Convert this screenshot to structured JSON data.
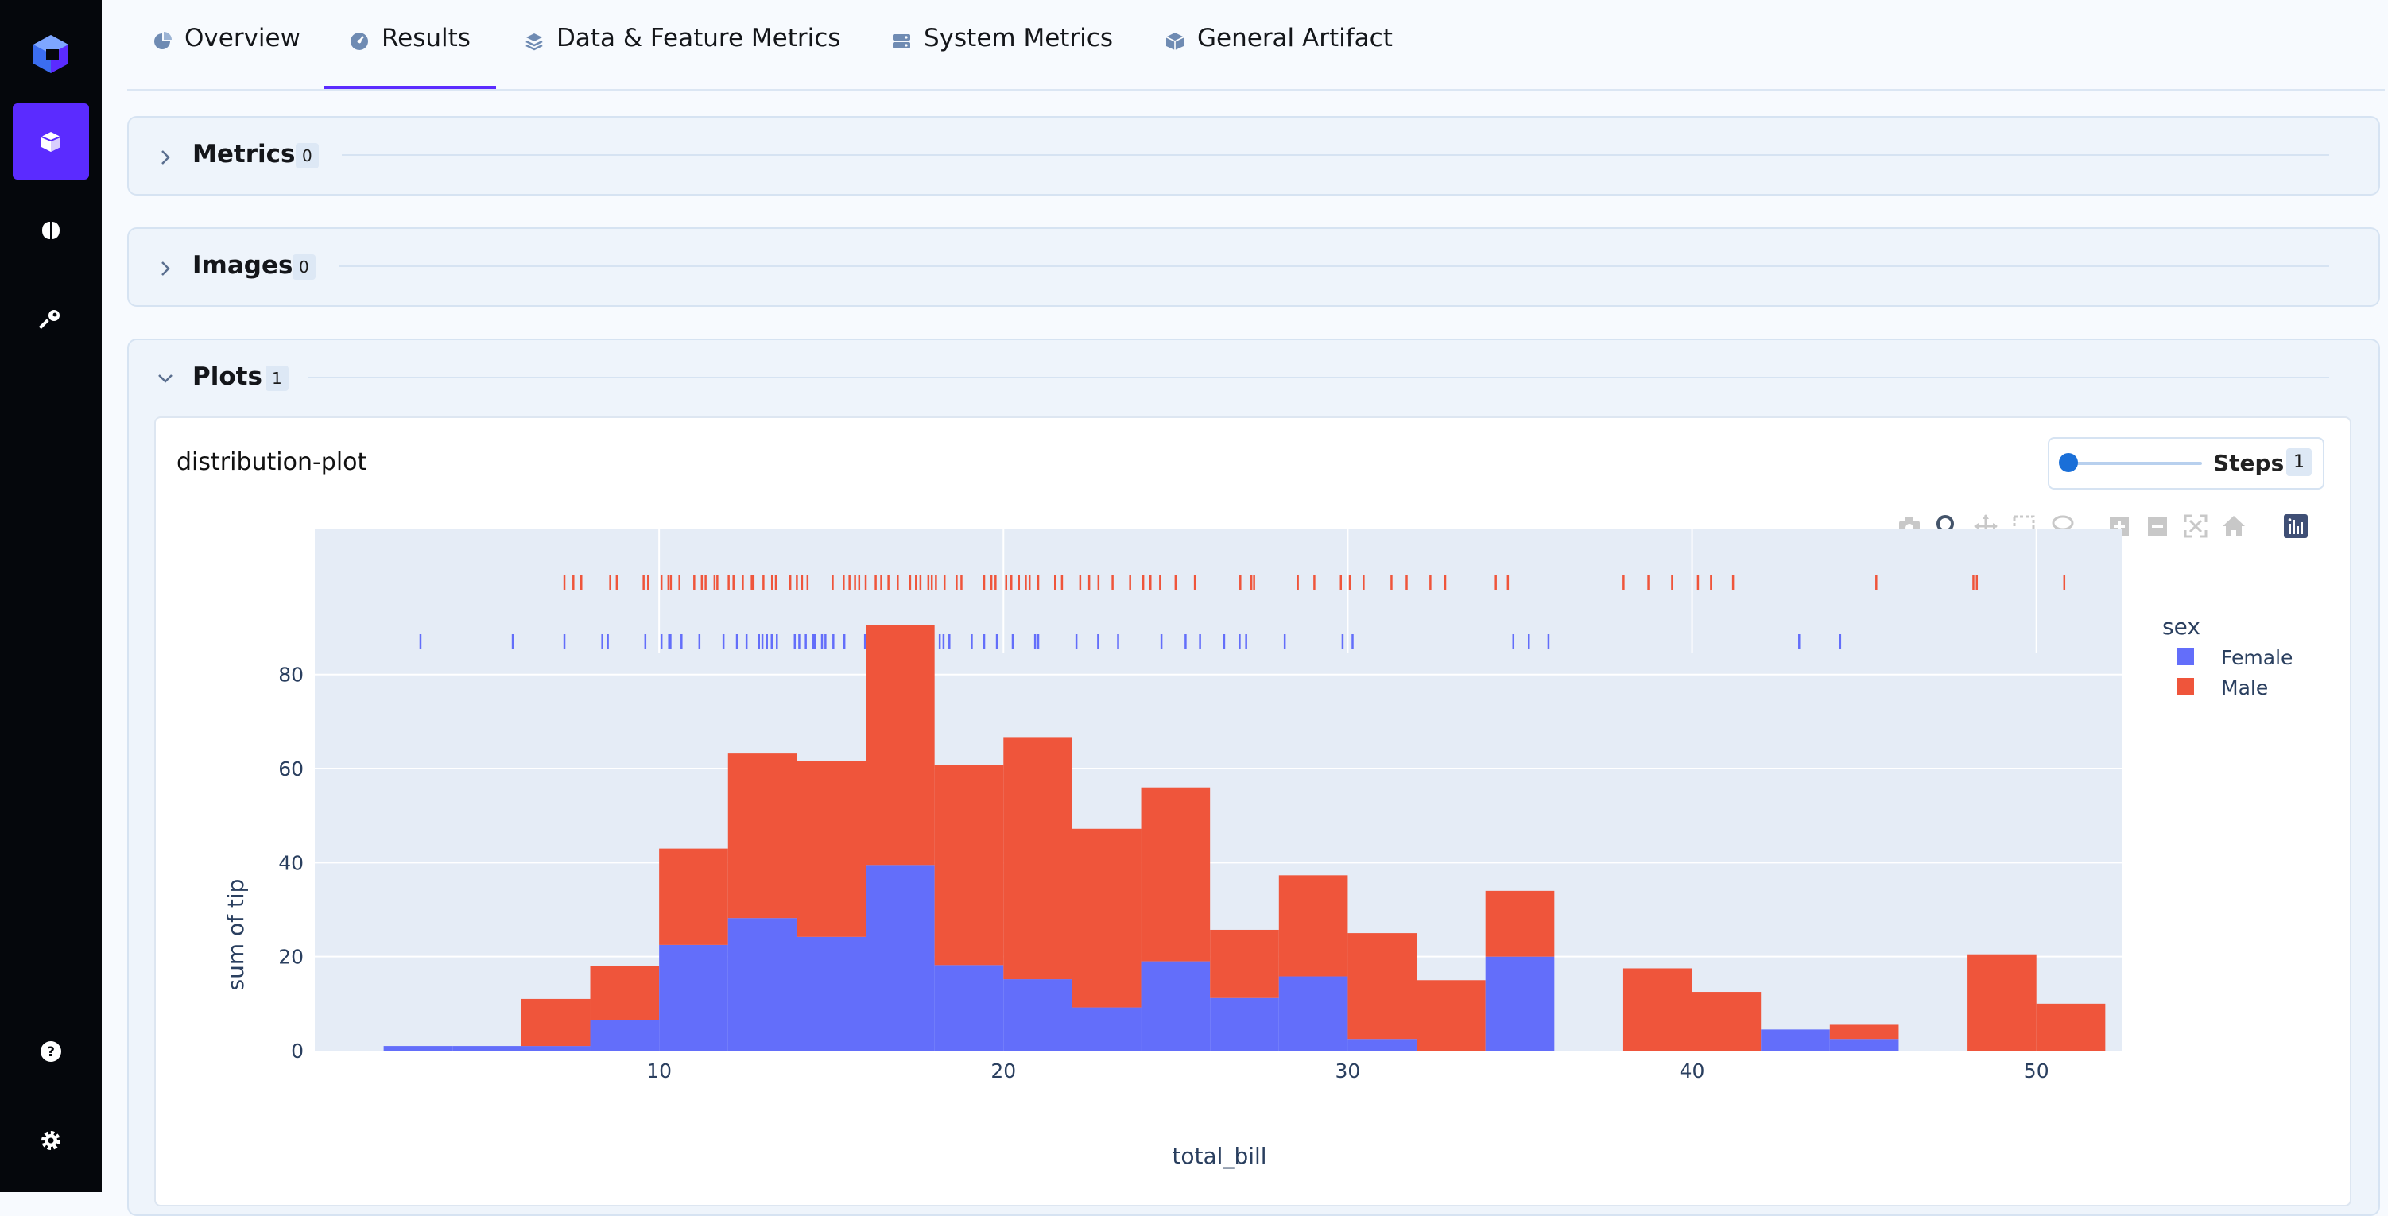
{
  "sidebar": {
    "items": [
      {
        "name": "logo",
        "icon": "logo-cube-icon"
      },
      {
        "name": "artifacts",
        "icon": "box-icon",
        "active": true
      },
      {
        "name": "models",
        "icon": "brain-icon"
      },
      {
        "name": "keys",
        "icon": "key-icon"
      },
      {
        "name": "help",
        "icon": "help-circle-icon"
      },
      {
        "name": "settings",
        "icon": "gear-icon"
      }
    ]
  },
  "tabs": [
    {
      "label": "Overview",
      "icon": "pie-icon"
    },
    {
      "label": "Results",
      "icon": "gauge-icon",
      "active": true
    },
    {
      "label": "Data & Feature Metrics",
      "icon": "layers-icon"
    },
    {
      "label": "System Metrics",
      "icon": "server-icon"
    },
    {
      "label": "General Artifact",
      "icon": "cube-icon"
    }
  ],
  "sections": {
    "metrics": {
      "title": "Metrics",
      "count": "0"
    },
    "images": {
      "title": "Images",
      "count": "0"
    },
    "plots": {
      "title": "Plots",
      "count": "1"
    }
  },
  "plot_card": {
    "title": "distribution-plot",
    "steps_label": "Steps",
    "steps_value": "1"
  },
  "colors": {
    "accent": "#5b2bff",
    "female": "#636efa",
    "male": "#ef553b",
    "plot_bg": "#e5ecf6"
  },
  "chart_data": {
    "type": "bar",
    "barmode": "stack",
    "xlabel": "total_bill",
    "ylabel": "sum of tip",
    "legend_title": "sex",
    "legend_position": "top-right",
    "grid": true,
    "xlim": [
      0,
      52.5
    ],
    "ylim": [
      0,
      95
    ],
    "x_ticks": [
      10,
      20,
      30,
      40,
      50
    ],
    "y_ticks": [
      0,
      20,
      40,
      60,
      80
    ],
    "bin_edges": [
      2,
      4,
      6,
      8,
      10,
      12,
      14,
      16,
      18,
      20,
      22,
      24,
      26,
      28,
      30,
      32,
      34,
      36,
      38,
      40,
      42,
      44,
      46,
      48,
      50,
      52
    ],
    "series": [
      {
        "name": "Female",
        "values": [
          1,
          1,
          1,
          6.5,
          22.5,
          28.2,
          24.2,
          39.5,
          18.2,
          15.2,
          9.2,
          19,
          11.2,
          15.8,
          2.5,
          0,
          20,
          0,
          0,
          0,
          4.5,
          2.5,
          0,
          0,
          0
        ]
      },
      {
        "name": "Male",
        "values": [
          0,
          0,
          10,
          11.5,
          20.5,
          35,
          37.5,
          51,
          42.5,
          51.5,
          38,
          37,
          14.5,
          21.5,
          22.5,
          15,
          14,
          0,
          17.5,
          12.5,
          0,
          3,
          0,
          20.5,
          10
        ]
      }
    ],
    "rug": {
      "Female": [
        3.07,
        5.75,
        7.25,
        8.35,
        8.51,
        9.6,
        10.07,
        10.29,
        10.33,
        10.65,
        11.17,
        11.87,
        12.26,
        12.54,
        12.9,
        13.0,
        13.13,
        13.27,
        13.42,
        13.94,
        14.07,
        14.26,
        14.48,
        14.52,
        14.73,
        14.83,
        15.06,
        15.38,
        15.98,
        16.27,
        16.43,
        16.58,
        16.99,
        17.07,
        17.31,
        17.51,
        17.78,
        18.15,
        18.26,
        18.43,
        19.08,
        19.44,
        19.81,
        20.27,
        20.92,
        21.01,
        22.12,
        22.75,
        23.33,
        24.59,
        25.29,
        25.71,
        26.41,
        26.86,
        27.05,
        28.17,
        29.85,
        30.14,
        34.81,
        35.26,
        35.83,
        43.11,
        44.3
      ],
      "Male": [
        7.25,
        7.51,
        7.74,
        8.58,
        8.77,
        9.55,
        9.68,
        10.07,
        10.27,
        10.34,
        10.59,
        11.02,
        11.24,
        11.35,
        11.61,
        11.69,
        12.02,
        12.16,
        12.43,
        12.69,
        12.74,
        13.03,
        13.28,
        13.39,
        13.81,
        14.0,
        14.15,
        14.31,
        15.04,
        15.36,
        15.53,
        15.69,
        15.81,
        16.0,
        16.29,
        16.45,
        16.66,
        16.93,
        17.29,
        17.46,
        17.59,
        17.82,
        17.92,
        18.04,
        18.29,
        18.64,
        18.78,
        19.44,
        19.65,
        19.77,
        20.08,
        20.23,
        20.45,
        20.65,
        20.76,
        21.01,
        21.5,
        21.7,
        22.23,
        22.49,
        22.76,
        23.17,
        23.68,
        24.06,
        24.27,
        24.55,
        25.0,
        25.56,
        26.88,
        27.2,
        27.28,
        28.55,
        29.03,
        29.8,
        30.06,
        30.46,
        31.27,
        31.71,
        32.4,
        32.83,
        34.3,
        34.65,
        38.01,
        38.73,
        39.42,
        40.17,
        40.55,
        41.19,
        45.35,
        48.17,
        48.27,
        50.81
      ]
    }
  }
}
